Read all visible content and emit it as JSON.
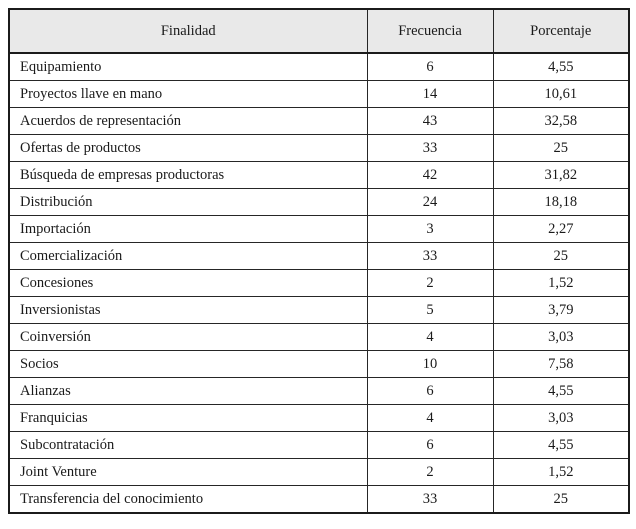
{
  "colors": {
    "header_bg": "#e9e9e9",
    "border_outer": "#1b1b1b",
    "border_inner": "#262626",
    "text": "#1a1a1a"
  },
  "table": {
    "columns": [
      "Finalidad",
      "Frecuencia",
      "Porcentaje"
    ],
    "rows": [
      [
        "Equipamiento",
        "6",
        "4,55"
      ],
      [
        "Proyectos llave en mano",
        "14",
        "10,61"
      ],
      [
        "Acuerdos de representación",
        "43",
        "32,58"
      ],
      [
        "Ofertas de productos",
        "33",
        "25"
      ],
      [
        "Búsqueda de empresas productoras",
        "42",
        "31,82"
      ],
      [
        "Distribución",
        "24",
        "18,18"
      ],
      [
        "Importación",
        "3",
        "2,27"
      ],
      [
        "Comercialización",
        "33",
        "25"
      ],
      [
        "Concesiones",
        "2",
        "1,52"
      ],
      [
        "Inversionistas",
        "5",
        "3,79"
      ],
      [
        "Coinversión",
        "4",
        "3,03"
      ],
      [
        "Socios",
        "10",
        "7,58"
      ],
      [
        "Alianzas",
        "6",
        "4,55"
      ],
      [
        "Franquicias",
        "4",
        "3,03"
      ],
      [
        "Subcontratación",
        "6",
        "4,55"
      ],
      [
        "Joint Venture",
        "2",
        "1,52"
      ],
      [
        "Transferencia del conocimiento",
        "33",
        "25"
      ]
    ]
  },
  "chart_data": {
    "type": "table",
    "title": "",
    "columns": [
      "Finalidad",
      "Frecuencia",
      "Porcentaje"
    ],
    "categories": [
      "Equipamiento",
      "Proyectos llave en mano",
      "Acuerdos de representación",
      "Ofertas de productos",
      "Búsqueda de empresas productoras",
      "Distribución",
      "Importación",
      "Comercialización",
      "Concesiones",
      "Inversionistas",
      "Coinversión",
      "Socios",
      "Alianzas",
      "Franquicias",
      "Subcontratación",
      "Joint Venture",
      "Transferencia del conocimiento"
    ],
    "series": [
      {
        "name": "Frecuencia",
        "values": [
          6,
          14,
          43,
          33,
          42,
          24,
          3,
          33,
          2,
          5,
          4,
          10,
          6,
          4,
          6,
          2,
          33
        ]
      },
      {
        "name": "Porcentaje",
        "values": [
          4.55,
          10.61,
          32.58,
          25,
          31.82,
          18.18,
          2.27,
          25,
          1.52,
          3.79,
          3.03,
          7.58,
          4.55,
          3.03,
          4.55,
          1.52,
          25
        ]
      }
    ]
  }
}
